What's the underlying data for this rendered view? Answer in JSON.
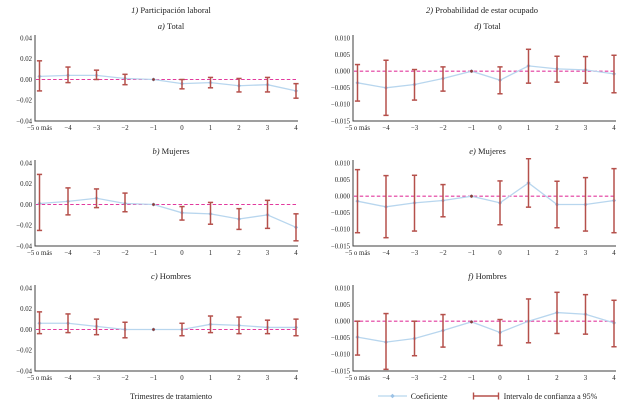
{
  "columns": [
    {
      "prefix": "1)",
      "title": "Participación laboral"
    },
    {
      "prefix": "2)",
      "title": "Probabilidad de estar ocupado"
    }
  ],
  "xlabel": "Trimestres de tratamiento",
  "legend": {
    "items": [
      {
        "label": "Coeficiente",
        "type": "line-marker"
      },
      {
        "label": "Intervalo de confianza a 95%",
        "type": "error-bar"
      }
    ]
  },
  "colors": {
    "coefficient_line": "#b8d6ee",
    "coefficient_marker": "#9dc3e6",
    "ci_bar": "#b5504b",
    "zero_line": "#e23a9e",
    "axis": "#3f3f3f",
    "text": "#1f1f1f",
    "reference_dot": "#8b3a36"
  },
  "chart_data": [
    {
      "type": "line",
      "section": "1) Participación laboral",
      "title_prefix": "a)",
      "title": "Total",
      "x_labels": [
        "−5 o más",
        "−4",
        "−3",
        "−2",
        "−1",
        "0",
        "1",
        "2",
        "3",
        "4"
      ],
      "ylim": [
        -0.04,
        0.04
      ],
      "ytick_values": [
        0.04,
        0.02,
        0,
        -0.02,
        -0.04
      ],
      "ytick_labels": [
        "0.04",
        "0.02",
        "0.00",
        "−0.02",
        "−0.04"
      ],
      "series": [
        {
          "name": "Coeficiente",
          "values": [
            0.003,
            0.004,
            0.004,
            0.001,
            0,
            -0.004,
            -0.003,
            -0.006,
            -0.005,
            -0.011
          ]
        }
      ],
      "ci_low": [
        -0.011,
        -0.003,
        0.0,
        -0.005,
        null,
        -0.009,
        -0.008,
        -0.012,
        -0.012,
        -0.018
      ],
      "ci_high": [
        0.018,
        0.012,
        0.009,
        0.005,
        null,
        0.0,
        0.002,
        0.001,
        0.002,
        -0.004
      ]
    },
    {
      "type": "line",
      "section": "1) Participación laboral",
      "title_prefix": "b)",
      "title": "Mujeres",
      "x_labels": [
        "−5 o más",
        "−4",
        "−3",
        "−2",
        "−1",
        "0",
        "1",
        "2",
        "3",
        "4"
      ],
      "ylim": [
        -0.04,
        0.04
      ],
      "ytick_values": [
        0.04,
        0.02,
        0,
        -0.02,
        -0.04
      ],
      "ytick_labels": [
        "0.04",
        "0.02",
        "0.00",
        "−0.02",
        "−0.04"
      ],
      "series": [
        {
          "name": "Coeficiente",
          "values": [
            0.001,
            0.003,
            0.006,
            0.001,
            0,
            -0.008,
            -0.009,
            -0.014,
            -0.01,
            -0.022
          ]
        }
      ],
      "ci_low": [
        -0.025,
        -0.01,
        -0.003,
        -0.007,
        null,
        -0.015,
        -0.019,
        -0.024,
        -0.023,
        -0.035
      ],
      "ci_high": [
        0.029,
        0.016,
        0.015,
        0.011,
        null,
        -0.002,
        0.002,
        -0.004,
        0.004,
        -0.009
      ]
    },
    {
      "type": "line",
      "section": "1) Participación laboral",
      "title_prefix": "c)",
      "title": "Hombres",
      "x_labels": [
        "−5 o más",
        "−4",
        "−3",
        "−2",
        "−1",
        "0",
        "1",
        "2",
        "3",
        "4"
      ],
      "ylim": [
        -0.04,
        0.04
      ],
      "ytick_values": [
        0.04,
        0.02,
        0,
        -0.02,
        -0.04
      ],
      "ytick_labels": [
        "0.04",
        "0.02",
        "0.00",
        "−0.02",
        "−0.04"
      ],
      "series": [
        {
          "name": "Coeficiente",
          "values": [
            0.006,
            0.006,
            0.003,
            0.0,
            0,
            0.0,
            0.005,
            0.004,
            0.002,
            0.002
          ]
        }
      ],
      "ci_low": [
        -0.004,
        -0.003,
        -0.005,
        -0.008,
        null,
        -0.006,
        -0.003,
        -0.004,
        -0.004,
        -0.006
      ],
      "ci_high": [
        0.017,
        0.015,
        0.01,
        0.007,
        null,
        0.006,
        0.013,
        0.012,
        0.009,
        0.01
      ]
    },
    {
      "type": "line",
      "section": "2) Probabilidad de estar ocupado",
      "title_prefix": "d)",
      "title": "Total",
      "x_labels": [
        "−5 o más",
        "−4",
        "−3",
        "−2",
        "−1",
        "0",
        "1",
        "2",
        "3",
        "4"
      ],
      "ylim": [
        -0.015,
        0.01
      ],
      "ytick_values": [
        0.01,
        0.005,
        0,
        -0.005,
        -0.01,
        -0.015
      ],
      "ytick_labels": [
        "0.010",
        "0.005",
        "0.000",
        "−0.005",
        "−0.010",
        "−0.015"
      ],
      "series": [
        {
          "name": "Coeficiente",
          "values": [
            -0.0035,
            -0.005,
            -0.004,
            -0.0022,
            0,
            -0.0027,
            0.0016,
            0.0007,
            0.0004,
            -0.0008
          ]
        }
      ],
      "ci_low": [
        -0.009,
        -0.0133,
        -0.0087,
        -0.006,
        null,
        -0.0068,
        -0.0036,
        -0.0033,
        -0.0036,
        -0.0065
      ],
      "ci_high": [
        0.002,
        0.0033,
        0.0005,
        0.0013,
        null,
        0.0013,
        0.0066,
        0.0045,
        0.0044,
        0.0048
      ]
    },
    {
      "type": "line",
      "section": "2) Probabilidad de estar ocupado",
      "title_prefix": "e)",
      "title": "Mujeres",
      "x_labels": [
        "−5 o más",
        "−4",
        "−3",
        "−2",
        "−1",
        "0",
        "1",
        "2",
        "3",
        "4"
      ],
      "ylim": [
        -0.015,
        0.01
      ],
      "ytick_values": [
        0.01,
        0.005,
        0,
        -0.005,
        -0.01,
        -0.015
      ],
      "ytick_labels": [
        "0.010",
        "0.005",
        "0.000",
        "−0.005",
        "−0.010",
        "−0.015"
      ],
      "series": [
        {
          "name": "Coeficiente",
          "values": [
            -0.0015,
            -0.0032,
            -0.002,
            -0.0013,
            0,
            -0.002,
            0.004,
            -0.0025,
            -0.0025,
            -0.0013
          ]
        }
      ],
      "ci_low": [
        -0.011,
        -0.0125,
        -0.0105,
        -0.0062,
        null,
        -0.0086,
        -0.0033,
        -0.0095,
        -0.0105,
        -0.011
      ],
      "ci_high": [
        0.008,
        0.0062,
        0.0063,
        0.0035,
        null,
        0.0046,
        0.0113,
        0.0045,
        0.0056,
        0.0083
      ]
    },
    {
      "type": "line",
      "section": "2) Probabilidad de estar ocupado",
      "title_prefix": "f)",
      "title": "Hombres",
      "x_labels": [
        "−5 o más",
        "−4",
        "−3",
        "−2",
        "−1",
        "0",
        "1",
        "2",
        "3",
        "4"
      ],
      "ylim": [
        -0.015,
        0.01
      ],
      "ytick_values": [
        0.01,
        0.005,
        0,
        -0.005,
        -0.01,
        -0.015
      ],
      "ytick_labels": [
        "0.010",
        "0.005",
        "0.000",
        "−0.005",
        "−0.010",
        "−0.015"
      ],
      "series": [
        {
          "name": "Coeficiente",
          "values": [
            -0.0048,
            -0.0063,
            -0.0052,
            -0.0028,
            -0.0002,
            -0.0034,
            0.0,
            0.0026,
            0.0021,
            -0.0005
          ]
        }
      ],
      "ci_low": [
        -0.0102,
        -0.0145,
        -0.0104,
        -0.0078,
        null,
        -0.0073,
        -0.0065,
        -0.0037,
        -0.0039,
        -0.0077
      ],
      "ci_high": [
        0.0,
        0.0023,
        0.0,
        0.002,
        null,
        0.0005,
        0.0067,
        0.0087,
        0.008,
        0.0063
      ]
    }
  ]
}
